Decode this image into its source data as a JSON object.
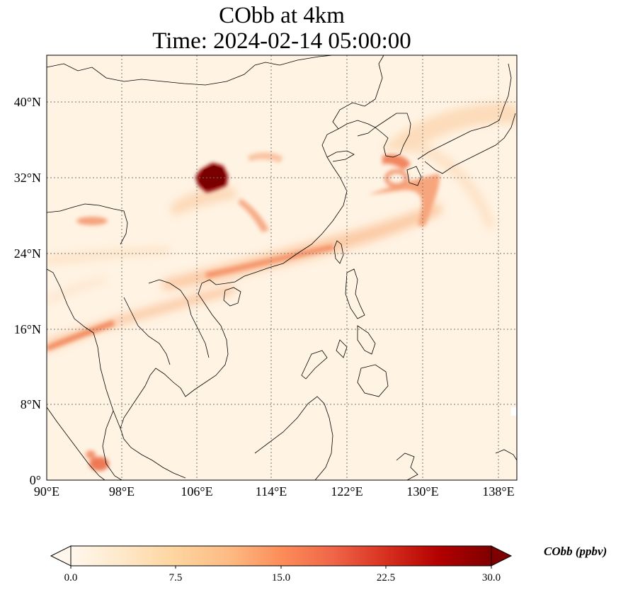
{
  "title_line1": "CObb at 4km",
  "title_line2": "Time: 2024-02-14 05:00:00",
  "map": {
    "lon_range": [
      90,
      139
    ],
    "lat_range": [
      0,
      44
    ],
    "lon_ticks": [
      "90°E",
      "98°E",
      "106°E",
      "114°E",
      "122°E",
      "130°E",
      "138°E"
    ],
    "lon_tick_values": [
      90,
      98,
      106,
      114,
      122,
      130,
      138
    ],
    "lat_ticks": [
      "0°",
      "8°N",
      "16°N",
      "24°N",
      "32°N",
      "40°N"
    ],
    "lat_tick_values": [
      0,
      8,
      16,
      24,
      32,
      40
    ],
    "gridlines": "dotted",
    "colormap": "OrRd"
  },
  "colorbar": {
    "label": "CObb (ppbv)",
    "min": 0,
    "max": 30,
    "ticks": [
      "0.0",
      "7.5",
      "15.0",
      "22.5",
      "30.0"
    ],
    "extend": "both",
    "colors": [
      "#fff7ec",
      "#fee8c8",
      "#fdd49e",
      "#fdbb84",
      "#fc8d59",
      "#ef6548",
      "#d7301f",
      "#b30000",
      "#7f0000"
    ]
  }
}
